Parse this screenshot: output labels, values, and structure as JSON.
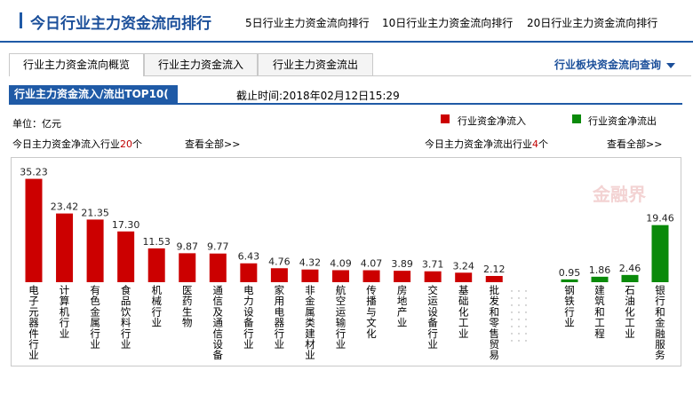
{
  "header": {
    "title": "今日行业主力资金流向排行",
    "links": [
      "5日行业主力资金流向排行",
      "10日行业主力资金流向排行",
      "20日行业主力资金流向排行"
    ]
  },
  "tabs": {
    "items": [
      "行业主力资金流向概览",
      "行业主力资金流入",
      "行业主力资金流出"
    ],
    "active": 0,
    "query_label": "行业板块资金流向查询"
  },
  "section": {
    "title": "行业主力资金流入/流出TOP10(",
    "deadline": "截止时间:2018年02月12日15:29"
  },
  "info": {
    "unit": "单位：亿元",
    "inflow_prefix": "今日主力资金净流入行业",
    "inflow_count": "20",
    "inflow_suffix": "个",
    "view_all_left": "查看全部>>",
    "outflow_prefix": "今日主力资金净流出行业",
    "outflow_count": "4",
    "outflow_suffix": "个",
    "view_all_right": "查看全部>>"
  },
  "legend": {
    "inflow_label": "行业资金净流入",
    "outflow_label": "行业资金净流出",
    "inflow_color": "#cc0000",
    "outflow_color": "#0a8a0a"
  },
  "watermark": "金融界",
  "chart_data": {
    "type": "bar",
    "ylim": [
      0,
      36
    ],
    "inflow": {
      "categories": [
        "电子元器件行业",
        "计算机行业",
        "有色金属行业",
        "食品饮料行业",
        "机械行业",
        "医药生物",
        "通信及通信设备",
        "电力设备行业",
        "家用电器行业",
        "非金属类建材业",
        "航空运输行业",
        "传播与文化",
        "房地产业",
        "交运设备行业",
        "基础化工业",
        "批发和零售贸易"
      ],
      "values": [
        35.23,
        23.42,
        21.35,
        17.3,
        11.53,
        9.87,
        9.77,
        6.43,
        4.76,
        4.32,
        4.09,
        4.07,
        3.89,
        3.71,
        3.24,
        2.12
      ],
      "labels": [
        "35.23",
        "23.42",
        "21.35",
        "17.30",
        "11.53",
        "9.87",
        "9.77",
        "6.43",
        "4.76",
        "4.32",
        "4.09",
        "4.07",
        "3.89",
        "3.71",
        "3.24",
        "2.12"
      ]
    },
    "outflow": {
      "categories": [
        "钢铁行业",
        "建筑和工程",
        "石油化工业",
        "银行和金融服务"
      ],
      "values": [
        0.95,
        1.86,
        2.46,
        19.46
      ],
      "labels": [
        "0.95",
        "1.86",
        "2.46",
        "19.46"
      ]
    }
  }
}
